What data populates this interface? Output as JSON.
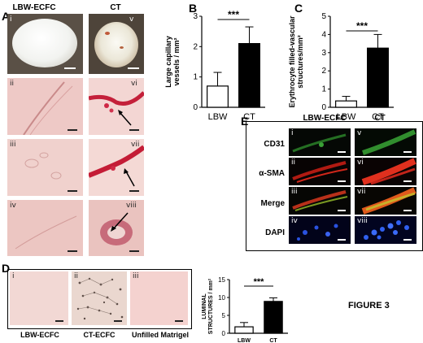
{
  "figure_label": "FIGURE 3",
  "panel_a": {
    "letter": "A",
    "col_headers": [
      "LBW-ECFC",
      "CT"
    ],
    "left_tiles": [
      "i",
      "ii",
      "iii",
      "iv"
    ],
    "right_tiles": [
      "v",
      "vi",
      "vii",
      "viii"
    ]
  },
  "panel_b": {
    "letter": "B"
  },
  "panel_c": {
    "letter": "C"
  },
  "panel_d": {
    "letter": "D",
    "tiles": [
      "i",
      "ii",
      "iii"
    ],
    "captions": [
      "LBW-ECFC",
      "CT-ECFC",
      "Unfilled Matrigel"
    ]
  },
  "panel_e": {
    "letter": "E",
    "col_headers": [
      "LBW-ECFC",
      "CT"
    ],
    "row_labels": [
      "CD31",
      "α-SMA",
      "Merge",
      "DAPI"
    ],
    "left_tiles": [
      "i",
      "ii",
      "iii",
      "iv"
    ],
    "right_tiles": [
      "v",
      "vi",
      "vii",
      "viii"
    ]
  },
  "chart_data": [
    {
      "id": "B",
      "type": "bar",
      "categories": [
        "LBW",
        "CT"
      ],
      "values": [
        0.7,
        2.1
      ],
      "errors": [
        0.45,
        0.55
      ],
      "bar_colors": [
        "#ffffff",
        "#000000"
      ],
      "ylabel": "Large capillary\nvessels / mm²",
      "ylim": [
        0,
        3
      ],
      "yticks": [
        "0",
        "1",
        "2",
        "3"
      ],
      "significance": "***"
    },
    {
      "id": "C",
      "type": "bar",
      "categories": [
        "LBW",
        "CT"
      ],
      "values": [
        0.35,
        3.25
      ],
      "errors": [
        0.25,
        0.75
      ],
      "bar_colors": [
        "#ffffff",
        "#000000"
      ],
      "ylabel": "Erythrocyte filled-vascular\nstructures/mm²",
      "ylim": [
        0,
        5
      ],
      "yticks": [
        "0",
        "1",
        "2",
        "3",
        "4",
        "5"
      ],
      "significance": "***"
    },
    {
      "id": "D",
      "type": "bar",
      "categories": [
        "LBW",
        "CT"
      ],
      "values": [
        1.8,
        8.9
      ],
      "errors": [
        1.2,
        1.0
      ],
      "bar_colors": [
        "#ffffff",
        "#000000"
      ],
      "ylabel": "LUMINAL\nSTRUCTURES / mm²",
      "ylim": [
        0,
        15
      ],
      "yticks": [
        "0",
        "5",
        "10",
        "15"
      ],
      "significance": "***"
    }
  ]
}
